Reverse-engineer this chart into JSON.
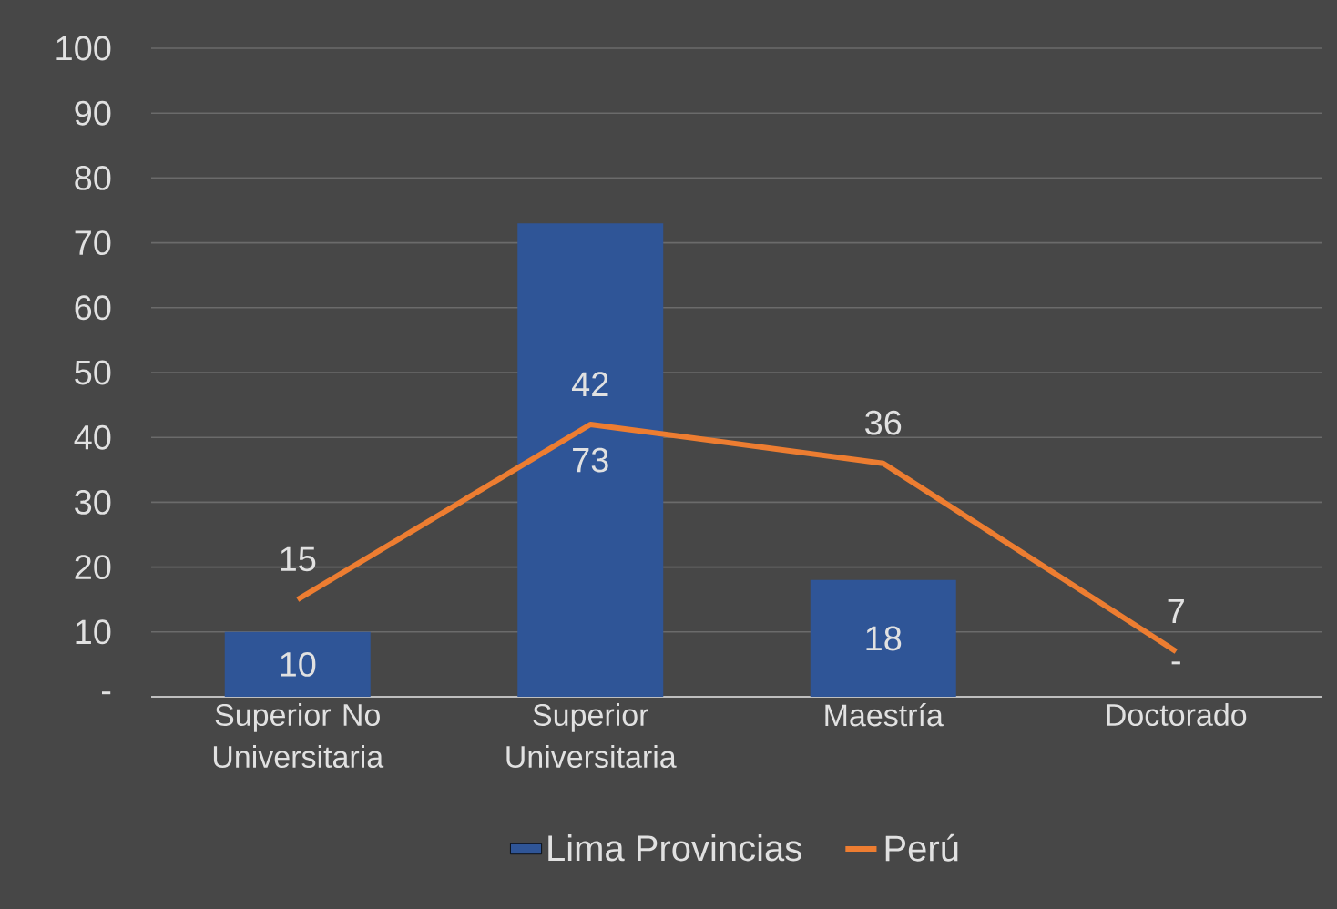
{
  "chart_data": {
    "type": "bar",
    "categories": [
      "Superior No Universitaria",
      "Superior Universitaria",
      "Maestría",
      "Doctorado"
    ],
    "series": [
      {
        "name": "Lima Provincias",
        "color": "#2f5597",
        "values": [
          10,
          73,
          18,
          0
        ],
        "value_labels": [
          "10",
          "73",
          "18",
          "-"
        ]
      },
      {
        "name": "Perú",
        "type": "line",
        "color": "#ed7d31",
        "values": [
          15,
          42,
          36,
          7
        ],
        "value_labels": [
          "15",
          "42",
          "36",
          "7"
        ]
      }
    ],
    "ylim": [
      0,
      100
    ],
    "yticks": [
      {
        "value": 0,
        "label": "-"
      },
      10,
      20,
      30,
      40,
      50,
      60,
      70,
      80,
      90,
      100
    ],
    "grid": "y",
    "legend": "bottom"
  }
}
